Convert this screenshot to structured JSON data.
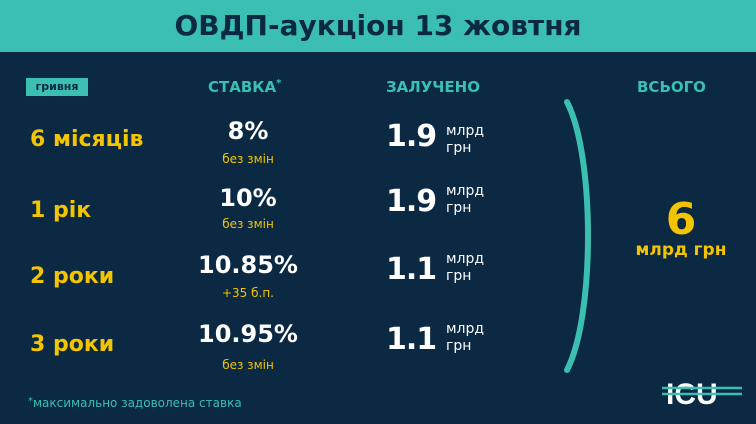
{
  "title": "ОВДП-аукціон 13 жовтня",
  "headers": {
    "currency": "гривня",
    "rate": "СТАВКА",
    "rate_mark": "*",
    "raised": "ЗАЛУЧЕНО",
    "total": "ВСЬОГО"
  },
  "rows": [
    {
      "term": "6 місяців",
      "rate": "8%",
      "change": "без змін",
      "raised": "1.9",
      "unit1": "млрд",
      "unit2": "грн"
    },
    {
      "term": "1 рік",
      "rate": "10%",
      "change": "без змін",
      "raised": "1.9",
      "unit1": "млрд",
      "unit2": "грн"
    },
    {
      "term": "2 роки",
      "rate": "10.85%",
      "change": "+35 б.п.",
      "raised": "1.1",
      "unit1": "млрд",
      "unit2": "грн"
    },
    {
      "term": "3 роки",
      "rate": "10.95%",
      "change": "без змін",
      "raised": "1.1",
      "unit1": "млрд",
      "unit2": "грн"
    }
  ],
  "total": {
    "value": "6",
    "unit": "млрд грн"
  },
  "footnote": {
    "mark": "*",
    "text": "максимально задоволена ставка"
  },
  "logo": "ICU",
  "colors": {
    "background": "#0b2942",
    "teal": "#3bbfb2",
    "yellow": "#f2c500",
    "white": "#ffffff"
  }
}
